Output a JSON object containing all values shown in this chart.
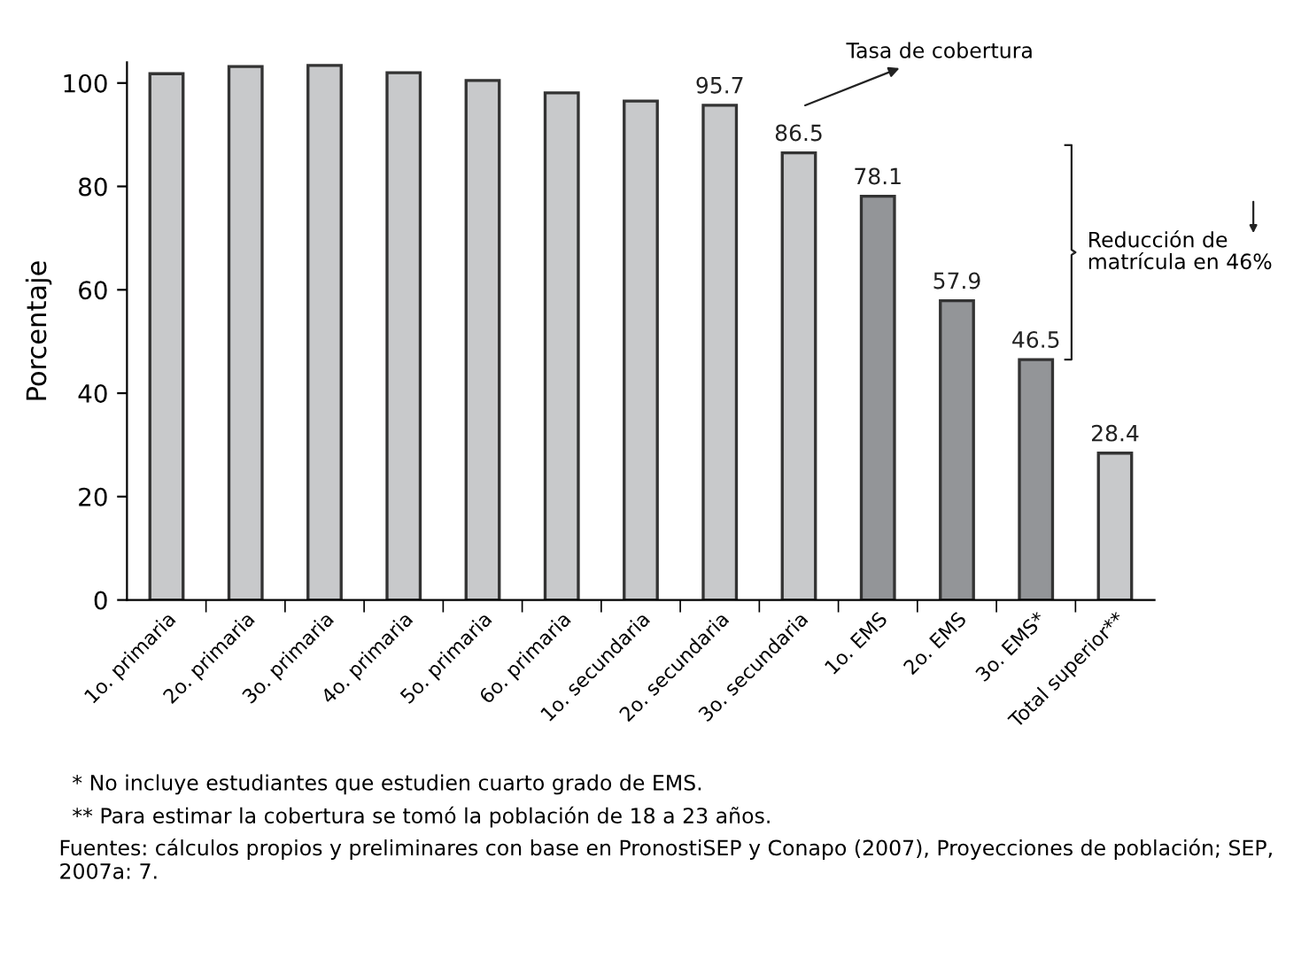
{
  "chart_data": {
    "type": "bar",
    "ylabel": "Porcentaje",
    "categories": [
      "1o. primaria",
      "2o. primaria",
      "3o. primaria",
      "4o. primaria",
      "5o. primaria",
      "6o. primaria",
      "1o. secundaria",
      "2o. secundaria",
      "3o. secundaria",
      "1o. EMS",
      "2o. EMS",
      "3o. EMS*",
      "Total superior**"
    ],
    "values": [
      101.8,
      103.2,
      103.4,
      102.0,
      100.5,
      98.1,
      96.5,
      95.7,
      86.5,
      78.1,
      57.9,
      46.5,
      28.4
    ],
    "value_labels": [
      null,
      null,
      null,
      null,
      null,
      null,
      null,
      "95.7",
      "86.5",
      "78.1",
      "57.9",
      "46.5",
      "28.4"
    ],
    "colors": [
      "#c8c9cb",
      "#c8c9cb",
      "#c8c9cb",
      "#c8c9cb",
      "#c8c9cb",
      "#c8c9cb",
      "#c8c9cb",
      "#c8c9cb",
      "#c8c9cb",
      "#939598",
      "#939598",
      "#939598",
      "#c8c9cb"
    ],
    "ylim": [
      0,
      104
    ],
    "yticks": [
      0,
      20,
      40,
      60,
      80,
      100
    ],
    "grid": false,
    "legend": false,
    "annotations": [
      "Tasa de cobertura",
      "Reducción de\nmatrícula en 46%",
      "* No incluye estudiantes que estudien cuarto grado de EMS.",
      "** Para estimar la cobertura se tomó la población de 18 a 23 años.",
      "Fuentes: cálculos propios y preliminares con base en PronostiSEP y Conapo (2007), Proyecciones de población; SEP, 2007a: 7."
    ]
  }
}
